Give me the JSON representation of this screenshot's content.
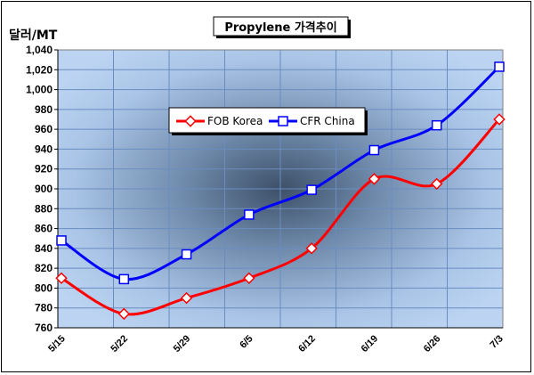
{
  "chart_data": {
    "type": "line",
    "title": "Propylene 가격추이",
    "ylabel": "달러/MT",
    "xlabel": "",
    "categories": [
      "5/15",
      "5/22",
      "5/29",
      "6/5",
      "6/12",
      "6/19",
      "6/26",
      "7/3"
    ],
    "ylim": [
      760,
      1040
    ],
    "ytick_step": 20,
    "ytick_labels": [
      "760",
      "780",
      "800",
      "820",
      "840",
      "860",
      "880",
      "900",
      "920",
      "940",
      "960",
      "980",
      "1,000",
      "1,020",
      "1,040"
    ],
    "legend_position": "upper-left-inside",
    "grid": true,
    "series": [
      {
        "name": "FOB Korea",
        "color": "#ff0000",
        "marker": "diamond",
        "values": [
          810,
          774,
          790,
          810,
          840,
          910,
          905,
          970
        ]
      },
      {
        "name": "CFR China",
        "color": "#0000ff",
        "marker": "square",
        "values": [
          848,
          809,
          834,
          874,
          899,
          939,
          964,
          1023
        ]
      }
    ]
  }
}
